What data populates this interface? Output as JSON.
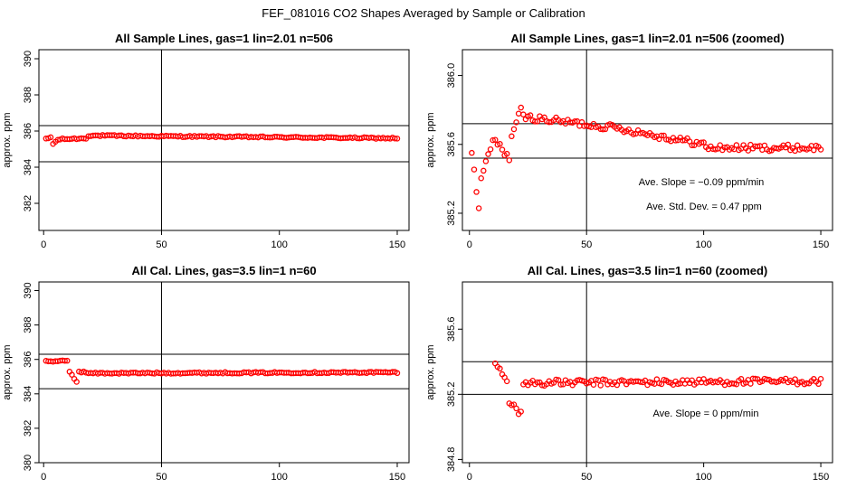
{
  "figure": {
    "title": "FEF_081016  CO2 Shapes Averaged by Sample or Calibration"
  },
  "chart_data": [
    {
      "type": "scatter",
      "title": "All Sample Lines, gas=1 lin=2.01 n=506",
      "xlabel": "",
      "ylabel": "approx. ppm",
      "xlim": [
        -2,
        155
      ],
      "ylim": [
        380.5,
        390.5
      ],
      "x_ticks": [
        0,
        50,
        100,
        150
      ],
      "y_ticks": [
        382,
        384,
        386,
        388,
        390
      ],
      "y_tick_labels": [
        "382",
        "384",
        "386",
        "388",
        "390"
      ],
      "vline_x": 50,
      "hlines_y": [
        386.3,
        384.3
      ],
      "marker_color": "#ff0000",
      "series": [
        {
          "segments": [
            {
              "from_x": 1,
              "to_x": 3,
              "from_y": 385.55,
              "to_y": 385.65
            },
            {
              "from_x": 4,
              "to_x": 6,
              "from_y": 385.3,
              "to_y": 385.5
            },
            {
              "from_x": 7,
              "to_x": 18,
              "from_y": 385.55,
              "to_y": 385.6
            },
            {
              "from_x": 19,
              "to_x": 150,
              "from_y": 385.75,
              "to_y": 385.6
            }
          ]
        }
      ],
      "annotations": []
    },
    {
      "type": "scatter",
      "title": "All Sample Lines, gas=1 lin=2.01 n=506 (zoomed)",
      "xlabel": "",
      "ylabel": "approx. ppm",
      "xlim": [
        -3,
        155
      ],
      "ylim": [
        385.1,
        386.15
      ],
      "x_ticks": [
        0,
        50,
        100,
        150
      ],
      "y_ticks": [
        385.2,
        385.6,
        386.0
      ],
      "y_tick_labels": [
        "385.2",
        "385.6",
        "386.0"
      ],
      "vline_x": 50,
      "hlines_y": [
        385.72,
        385.52
      ],
      "marker_color": "#ff0000",
      "series": [
        {
          "segments": [
            {
              "from_x": 1,
              "to_x": 4,
              "from_y": 385.55,
              "to_y": 385.22
            },
            {
              "from_x": 5,
              "to_x": 10,
              "from_y": 385.4,
              "to_y": 385.62
            },
            {
              "from_x": 11,
              "to_x": 17,
              "from_y": 385.62,
              "to_y": 385.52
            },
            {
              "from_x": 18,
              "to_x": 22,
              "from_y": 385.65,
              "to_y": 385.8
            },
            {
              "from_x": 23,
              "to_x": 60,
              "from_y": 385.76,
              "to_y": 385.7
            },
            {
              "from_x": 61,
              "to_x": 100,
              "from_y": 385.7,
              "to_y": 385.6
            },
            {
              "from_x": 101,
              "to_x": 150,
              "from_y": 385.58,
              "to_y": 385.58
            }
          ]
        }
      ],
      "annotations": [
        "Ave. Slope =  −0.09  ppm/min",
        "Ave. Std. Dev. =  0.47  ppm"
      ]
    },
    {
      "type": "scatter",
      "title": "All Cal. Lines, gas=3.5 lin=1 n=60",
      "xlabel": "",
      "ylabel": "approx. ppm",
      "xlim": [
        -2,
        155
      ],
      "ylim": [
        380,
        390.5
      ],
      "x_ticks": [
        0,
        50,
        100,
        150
      ],
      "y_ticks": [
        380,
        382,
        384,
        386,
        388,
        390
      ],
      "y_tick_labels": [
        "380",
        "382",
        "384",
        "386",
        "388",
        "390"
      ],
      "vline_x": 50,
      "hlines_y": [
        386.3,
        384.3
      ],
      "marker_color": "#ff0000",
      "series": [
        {
          "segments": [
            {
              "from_x": 1,
              "to_x": 10,
              "from_y": 385.9,
              "to_y": 385.9
            },
            {
              "from_x": 11,
              "to_x": 14,
              "from_y": 385.3,
              "to_y": 384.7
            },
            {
              "from_x": 15,
              "to_x": 20,
              "from_y": 385.3,
              "to_y": 385.2
            },
            {
              "from_x": 21,
              "to_x": 150,
              "from_y": 385.2,
              "to_y": 385.25
            }
          ]
        }
      ],
      "annotations": []
    },
    {
      "type": "scatter",
      "title": "All Cal. Lines, gas=3.5 lin=1 n=60 (zoomed)",
      "xlabel": "",
      "ylabel": "approx. ppm",
      "xlim": [
        -3,
        155
      ],
      "ylim": [
        384.78,
        385.89
      ],
      "x_ticks": [
        0,
        50,
        100,
        150
      ],
      "y_ticks": [
        384.8,
        385.2,
        385.6
      ],
      "y_tick_labels": [
        "384.8",
        "385.2",
        "385.6"
      ],
      "vline_x": 50,
      "hlines_y": [
        385.4,
        385.2
      ],
      "marker_color": "#ff0000",
      "series": [
        {
          "segments": [
            {
              "from_x": 11,
              "to_x": 16,
              "from_y": 385.38,
              "to_y": 385.3
            },
            {
              "from_x": 17,
              "to_x": 22,
              "from_y": 385.15,
              "to_y": 385.08
            },
            {
              "from_x": 23,
              "to_x": 150,
              "from_y": 385.27,
              "to_y": 385.28
            }
          ]
        }
      ],
      "annotations": [
        "Ave. Slope =  0  ppm/min"
      ]
    }
  ]
}
